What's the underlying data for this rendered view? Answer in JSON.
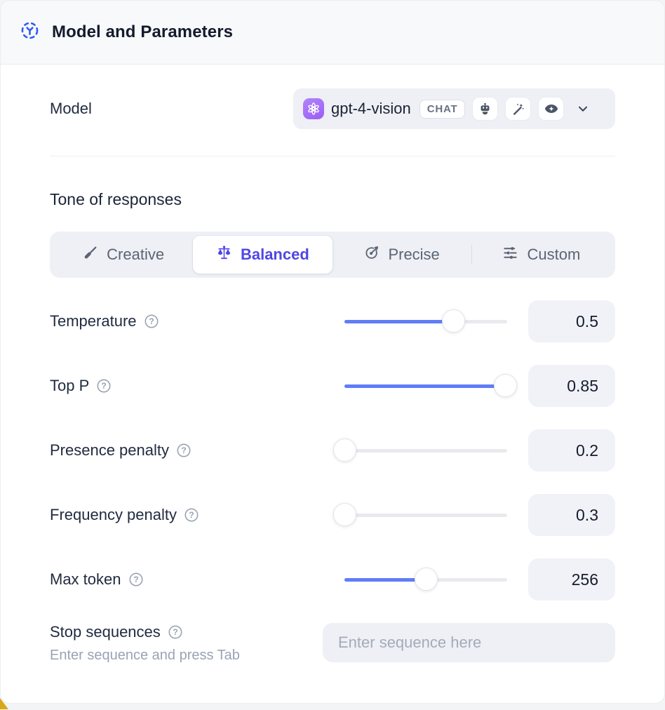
{
  "header": {
    "title": "Model and Parameters"
  },
  "model": {
    "label": "Model",
    "selected": {
      "name": "gpt-4-vision",
      "provider_icon": "openai-logo",
      "type_badge": "CHAT",
      "capability_icons": [
        "bot-icon",
        "wand-sparkles-icon",
        "vision-eye-icon"
      ]
    }
  },
  "tone": {
    "heading": "Tone of responses",
    "tabs": [
      {
        "label": "Creative",
        "icon": "brush-icon",
        "selected": false
      },
      {
        "label": "Balanced",
        "icon": "balance-scale-icon",
        "selected": true
      },
      {
        "label": "Precise",
        "icon": "target-arrow-icon",
        "selected": false
      },
      {
        "label": "Custom",
        "icon": "sliders-icon",
        "selected": false
      }
    ]
  },
  "parameters": [
    {
      "label": "Temperature",
      "value": "0.5",
      "slider_percent": 67
    },
    {
      "label": "Top P",
      "value": "0.85",
      "slider_percent": 99
    },
    {
      "label": "Presence penalty",
      "value": "0.2",
      "slider_percent": 0
    },
    {
      "label": "Frequency penalty",
      "value": "0.3",
      "slider_percent": 0
    },
    {
      "label": "Max token",
      "value": "256",
      "slider_percent": 50
    }
  ],
  "stop_sequences": {
    "label": "Stop sequences",
    "hint": "Enter sequence and press Tab",
    "placeholder": "Enter sequence here"
  },
  "colors": {
    "accent_slider_blue": "#5f7df8",
    "selected_tab_indigo": "#4f46e5",
    "header_icon_blue": "#2f5af7",
    "provider_purple": "#a065f7",
    "panel_header_bg": "#f8f9fb",
    "field_bg": "#eef0f5"
  }
}
